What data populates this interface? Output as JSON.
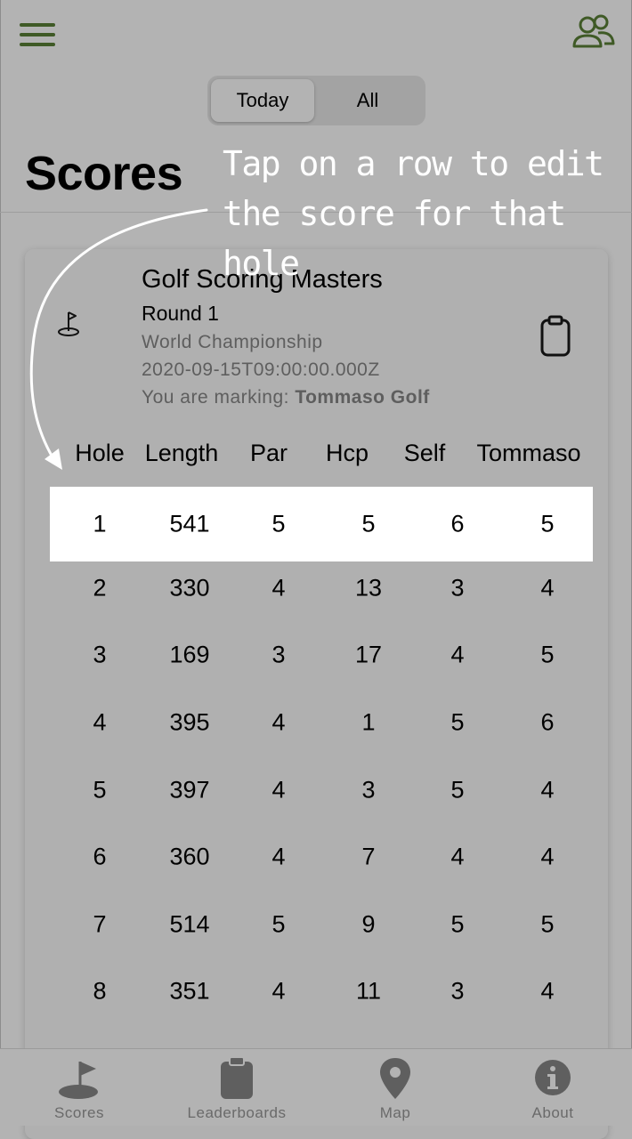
{
  "header": {
    "segments": [
      {
        "label": "Today",
        "selected": true
      },
      {
        "label": "All",
        "selected": false
      }
    ],
    "title": "Scores",
    "menu_icon": "hamburger-menu-icon",
    "friends_icon": "people-icon"
  },
  "hint": {
    "line1": "Tap on a row to edit",
    "line2": "the score for that hole"
  },
  "round_card": {
    "course": "Golf Scoring Masters",
    "round": "Round 1",
    "event": "World Championship",
    "date": "2020-09-15T09:00:00.000Z",
    "marking_label": "You are marking:",
    "marking_name": "Tommaso Golf",
    "left_icon": "golf-flag-icon",
    "right_icon": "clipboard-icon"
  },
  "table": {
    "columns": [
      "Hole",
      "Length",
      "Par",
      "Hcp",
      "Self",
      "Tommaso"
    ],
    "rows": [
      [
        "1",
        "541",
        "5",
        "5",
        "6",
        "5"
      ],
      [
        "2",
        "330",
        "4",
        "13",
        "3",
        "4"
      ],
      [
        "3",
        "169",
        "3",
        "17",
        "4",
        "5"
      ],
      [
        "4",
        "395",
        "4",
        "1",
        "5",
        "6"
      ],
      [
        "5",
        "397",
        "4",
        "3",
        "5",
        "4"
      ],
      [
        "6",
        "360",
        "4",
        "7",
        "4",
        "4"
      ],
      [
        "7",
        "514",
        "5",
        "9",
        "5",
        "5"
      ],
      [
        "8",
        "351",
        "4",
        "11",
        "3",
        "4"
      ]
    ],
    "selected_row": 0
  },
  "tabbar": {
    "tabs": [
      {
        "label": "Scores",
        "icon": "golf-flag-icon"
      },
      {
        "label": "Leaderboards",
        "icon": "clipboard-icon"
      },
      {
        "label": "Map",
        "icon": "map-pin-icon"
      },
      {
        "label": "About",
        "icon": "info-icon"
      }
    ]
  },
  "colors": {
    "background": "#b3b3b3",
    "accent": "#3f5a26",
    "muted_text": "#5e5e5e",
    "selected_row": "#ffffff"
  }
}
